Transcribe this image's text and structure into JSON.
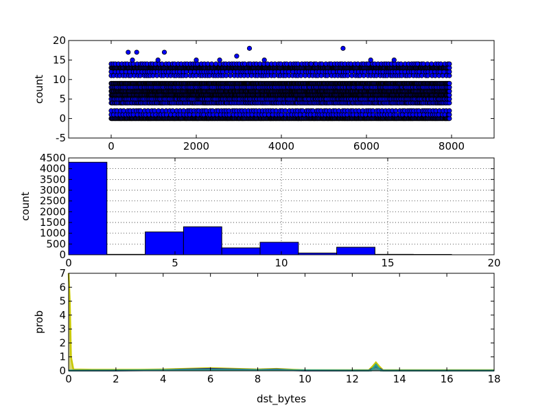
{
  "figure": {
    "background": "#ffffff"
  },
  "chart_data": [
    {
      "type": "scatter",
      "title": "",
      "xlabel": "",
      "ylabel": "count",
      "xlim": [
        -1000,
        9000
      ],
      "ylim": [
        -5,
        20
      ],
      "xticks": [
        0,
        2000,
        4000,
        6000,
        8000
      ],
      "yticks": [
        -5,
        0,
        5,
        10,
        15,
        20
      ],
      "grid": false,
      "marker_color": "#0000ff",
      "x_range": [
        0,
        7950
      ],
      "bands": [
        {
          "y": 0,
          "x_from": 0,
          "x_to": 7950,
          "density": "dense"
        },
        {
          "y": 1,
          "x_from": 0,
          "x_to": 7950,
          "density": "sparse"
        },
        {
          "y": 2,
          "x_from": 0,
          "x_to": 7950,
          "density": "sparse"
        },
        {
          "y": 4,
          "x_from": 0,
          "x_to": 7950,
          "density": "medium"
        },
        {
          "y": 5,
          "x_from": 0,
          "x_to": 7950,
          "density": "medium"
        },
        {
          "y": 6,
          "x_from": 0,
          "x_to": 7950,
          "density": "dense"
        },
        {
          "y": 7,
          "x_from": 0,
          "x_to": 7950,
          "density": "dense"
        },
        {
          "y": 8,
          "x_from": 0,
          "x_to": 7950,
          "density": "medium"
        },
        {
          "y": 9,
          "x_from": 0,
          "x_to": 7950,
          "density": "dense"
        },
        {
          "y": 11,
          "x_from": 0,
          "x_to": 7950,
          "density": "sparse"
        },
        {
          "y": 12,
          "x_from": 0,
          "x_to": 7950,
          "density": "sparse"
        },
        {
          "y": 13,
          "x_from": 0,
          "x_to": 7950,
          "density": "dense"
        },
        {
          "y": 14,
          "x_from": 0,
          "x_to": 7950,
          "density": "sparse"
        }
      ],
      "outliers": [
        {
          "x": 400,
          "y": 17
        },
        {
          "x": 600,
          "y": 17
        },
        {
          "x": 1250,
          "y": 17
        },
        {
          "x": 3250,
          "y": 18
        },
        {
          "x": 5450,
          "y": 18
        },
        {
          "x": 2000,
          "y": 15
        },
        {
          "x": 2550,
          "y": 15
        },
        {
          "x": 2950,
          "y": 16
        },
        {
          "x": 3600,
          "y": 15
        },
        {
          "x": 6100,
          "y": 15
        },
        {
          "x": 6650,
          "y": 15
        },
        {
          "x": 500,
          "y": 15
        },
        {
          "x": 1100,
          "y": 15
        },
        {
          "x": 4700,
          "y": 14
        },
        {
          "x": 7200,
          "y": 14
        }
      ]
    },
    {
      "type": "bar",
      "title": "",
      "xlabel": "",
      "ylabel": "count",
      "xlim": [
        0,
        20
      ],
      "ylim": [
        0,
        4500
      ],
      "xticks": [
        0,
        5,
        10,
        15,
        20
      ],
      "yticks": [
        0,
        500,
        1000,
        1500,
        2000,
        2500,
        3000,
        3500,
        4000,
        4500
      ],
      "grid": true,
      "bar_color": "#0000ff",
      "bins": [
        {
          "x0": 0.0,
          "x1": 1.8,
          "value": 4300
        },
        {
          "x0": 1.8,
          "x1": 3.6,
          "value": 20
        },
        {
          "x0": 3.6,
          "x1": 5.4,
          "value": 1060
        },
        {
          "x0": 5.4,
          "x1": 7.2,
          "value": 1300
        },
        {
          "x0": 7.2,
          "x1": 9.0,
          "value": 320
        },
        {
          "x0": 9.0,
          "x1": 10.8,
          "value": 580
        },
        {
          "x0": 10.8,
          "x1": 12.6,
          "value": 80
        },
        {
          "x0": 12.6,
          "x1": 14.4,
          "value": 350
        },
        {
          "x0": 14.4,
          "x1": 16.2,
          "value": 20
        },
        {
          "x0": 16.2,
          "x1": 18.0,
          "value": 15
        }
      ]
    },
    {
      "type": "line",
      "title": "",
      "xlabel": "dst_bytes",
      "ylabel": "prob",
      "xlim": [
        0,
        18
      ],
      "ylim": [
        0,
        7
      ],
      "xticks": [
        0,
        2,
        4,
        6,
        8,
        10,
        12,
        14,
        16,
        18
      ],
      "yticks": [
        0,
        1,
        2,
        3,
        4,
        5,
        6,
        7
      ],
      "grid": false,
      "series": [
        {
          "color": "#c8c800",
          "fill": "#b4b400",
          "points": [
            [
              0,
              7.0
            ],
            [
              0.05,
              5.0
            ],
            [
              0.1,
              1.0
            ],
            [
              0.2,
              0.1
            ],
            [
              1,
              0.08
            ],
            [
              2,
              0.08
            ],
            [
              3,
              0.08
            ],
            [
              4,
              0.1
            ],
            [
              5,
              0.15
            ],
            [
              6,
              0.2
            ],
            [
              7,
              0.15
            ],
            [
              8,
              0.1
            ],
            [
              8.8,
              0.14
            ],
            [
              9.5,
              0.08
            ],
            [
              10,
              0.05
            ],
            [
              11,
              0.05
            ],
            [
              12,
              0.05
            ],
            [
              12.7,
              0.05
            ],
            [
              12.85,
              0.3
            ],
            [
              13.0,
              0.6
            ],
            [
              13.15,
              0.3
            ],
            [
              13.3,
              0.05
            ],
            [
              14,
              0.05
            ],
            [
              16,
              0.05
            ],
            [
              18,
              0.05
            ]
          ]
        },
        {
          "color": "#2c3e78",
          "fill": "#3b4f8a",
          "points": [
            [
              0,
              0.02
            ],
            [
              2,
              0.02
            ],
            [
              4,
              0.05
            ],
            [
              5,
              0.1
            ],
            [
              6,
              0.14
            ],
            [
              7,
              0.1
            ],
            [
              8,
              0.06
            ],
            [
              8.8,
              0.1
            ],
            [
              9.5,
              0.04
            ],
            [
              10,
              0.02
            ],
            [
              12.7,
              0.02
            ],
            [
              13.0,
              0.3
            ],
            [
              13.3,
              0.02
            ],
            [
              18,
              0.02
            ]
          ]
        },
        {
          "color": "#2a9d8f",
          "fill": "#2a9d8f",
          "points": [
            [
              0,
              0.02
            ],
            [
              6,
              0.06
            ],
            [
              8.8,
              0.05
            ],
            [
              12.8,
              0.02
            ],
            [
              13.0,
              0.45
            ],
            [
              13.2,
              0.02
            ],
            [
              18,
              0.02
            ]
          ]
        }
      ]
    }
  ]
}
